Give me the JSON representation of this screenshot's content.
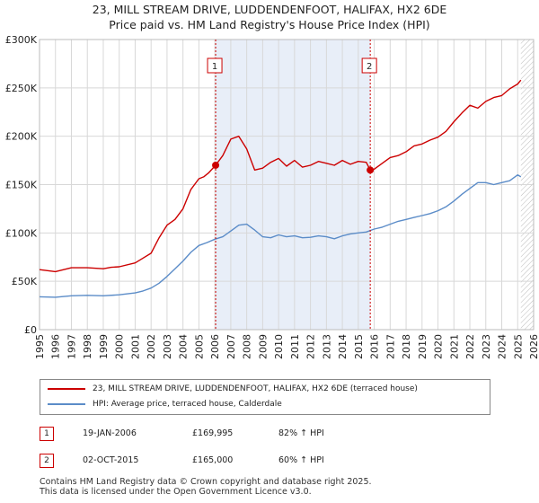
{
  "header": {
    "title": "23, MILL STREAM DRIVE, LUDDENDENFOOT, HALIFAX, HX2 6DE",
    "subtitle": "Price paid vs. HM Land Registry's House Price Index (HPI)"
  },
  "colors": {
    "property": "#cc0000",
    "hpi": "#5b8cc8",
    "shade": "#e8eef8",
    "grid": "#d8d8d8"
  },
  "chart_data": {
    "type": "line",
    "xlim": [
      1995,
      2026
    ],
    "ylim": [
      0,
      300000
    ],
    "x_ticks": [
      "1995",
      "1996",
      "1997",
      "1998",
      "1999",
      "2000",
      "2001",
      "2002",
      "2003",
      "2004",
      "2005",
      "2006",
      "2007",
      "2008",
      "2009",
      "2010",
      "2011",
      "2012",
      "2013",
      "2014",
      "2015",
      "2016",
      "2017",
      "2018",
      "2019",
      "2020",
      "2021",
      "2022",
      "2023",
      "2024",
      "2025",
      "2026"
    ],
    "y_ticks": [
      {
        "value": 0,
        "label": "£0"
      },
      {
        "value": 50000,
        "label": "£50K"
      },
      {
        "value": 100000,
        "label": "£100K"
      },
      {
        "value": 150000,
        "label": "£150K"
      },
      {
        "value": 200000,
        "label": "£200K"
      },
      {
        "value": 250000,
        "label": "£250K"
      },
      {
        "value": 300000,
        "label": "£300K"
      }
    ],
    "shaded_range": [
      2006.05,
      2015.75
    ],
    "future_from": 2025.2,
    "series": [
      {
        "name": "23, MILL STREAM DRIVE, LUDDENDENFOOT, HALIFAX, HX2 6DE (terraced house)",
        "color": "#cc0000",
        "x": [
          1995,
          1996,
          1997,
          1998,
          1999,
          1999.5,
          2000,
          2001,
          2001.5,
          2002,
          2002.5,
          2003,
          2003.5,
          2004,
          2004.5,
          2005,
          2005.3,
          2005.6,
          2006.05,
          2006.5,
          2007,
          2007.5,
          2008,
          2008.5,
          2009,
          2009.5,
          2010,
          2010.5,
          2011,
          2011.5,
          2012,
          2012.5,
          2013,
          2013.5,
          2014,
          2014.5,
          2015,
          2015.5,
          2015.75,
          2016,
          2016.5,
          2017,
          2017.5,
          2018,
          2018.5,
          2019,
          2019.5,
          2020,
          2020.5,
          2021,
          2021.5,
          2022,
          2022.5,
          2023,
          2023.5,
          2024,
          2024.5,
          2025,
          2025.2
        ],
        "y": [
          62000,
          60000,
          64000,
          64000,
          63000,
          64500,
          65000,
          69000,
          74000,
          79000,
          95000,
          108000,
          114000,
          125000,
          145000,
          156000,
          158000,
          162000,
          169995,
          180000,
          197000,
          200000,
          187000,
          165000,
          167000,
          173000,
          177000,
          169000,
          175000,
          168000,
          170000,
          174000,
          172000,
          170000,
          175000,
          171000,
          174000,
          173000,
          165000,
          166000,
          172000,
          178000,
          180000,
          184000,
          190000,
          192000,
          196000,
          199000,
          205000,
          215000,
          224000,
          232000,
          229000,
          236000,
          240000,
          242000,
          249000,
          254000,
          258000
        ]
      },
      {
        "name": "HPI: Average price, terraced house, Calderdale",
        "color": "#5b8cc8",
        "x": [
          1995,
          1996,
          1997,
          1998,
          1999,
          2000,
          2001,
          2001.5,
          2002,
          2002.5,
          2003,
          2003.5,
          2004,
          2004.5,
          2005,
          2005.5,
          2006,
          2006.5,
          2007,
          2007.5,
          2008,
          2008.5,
          2009,
          2009.5,
          2010,
          2010.5,
          2011,
          2011.5,
          2012,
          2012.5,
          2013,
          2013.5,
          2014,
          2014.5,
          2015,
          2015.5,
          2016,
          2016.5,
          2017,
          2017.5,
          2018,
          2018.5,
          2019,
          2019.5,
          2020,
          2020.5,
          2021,
          2021.5,
          2022,
          2022.5,
          2023,
          2023.5,
          2024,
          2024.5,
          2025,
          2025.2
        ],
        "y": [
          34000,
          33500,
          35000,
          35500,
          35000,
          36000,
          38000,
          40000,
          43000,
          48000,
          55000,
          63000,
          71000,
          80000,
          87000,
          90000,
          93500,
          96000,
          102000,
          108000,
          109000,
          103000,
          96000,
          95000,
          98000,
          96000,
          97000,
          95000,
          95500,
          97000,
          96000,
          94000,
          97000,
          99000,
          100000,
          101000,
          104000,
          106000,
          109000,
          112000,
          114000,
          116000,
          118000,
          120000,
          123000,
          127000,
          133000,
          140000,
          146000,
          152000,
          152000,
          150000,
          152000,
          154000,
          160000,
          158000
        ]
      }
    ],
    "annotations": [
      {
        "label": "1",
        "x": 2006.05,
        "y": 169995
      },
      {
        "label": "2",
        "x": 2015.75,
        "y": 165000
      }
    ]
  },
  "legend": {
    "property_label": "23, MILL STREAM DRIVE, LUDDENDENFOOT, HALIFAX, HX2 6DE (terraced house)",
    "hpi_label": "HPI: Average price, terraced house, Calderdale"
  },
  "transactions": [
    {
      "num": "1",
      "date": "19-JAN-2006",
      "price": "£169,995",
      "hpi": "82% ↑ HPI"
    },
    {
      "num": "2",
      "date": "02-OCT-2015",
      "price": "£165,000",
      "hpi": "60% ↑ HPI"
    }
  ],
  "footer": {
    "line1": "Contains HM Land Registry data © Crown copyright and database right 2025.",
    "line2": "This data is licensed under the Open Government Licence v3.0."
  }
}
